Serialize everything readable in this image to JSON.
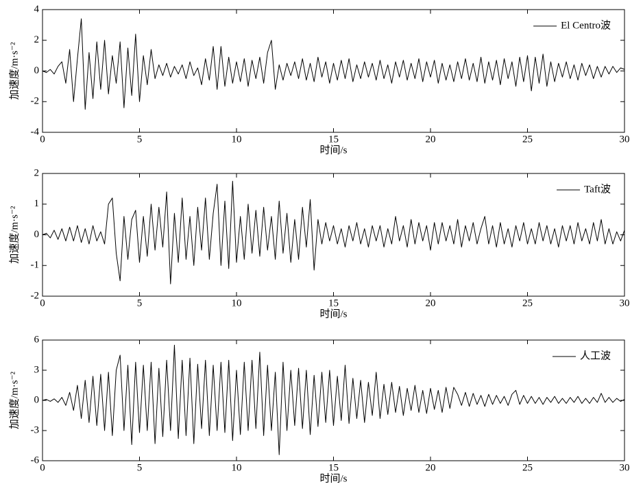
{
  "chart_data": [
    {
      "type": "line",
      "xlabel": "时间/s",
      "ylabel": "加速度/m·s⁻²",
      "xlim": [
        0,
        30
      ],
      "xticks": [
        0,
        5,
        10,
        15,
        20,
        25,
        30
      ],
      "ylim": [
        -4,
        4
      ],
      "yticks": [
        -4,
        -2,
        0,
        2,
        4
      ],
      "legend": "upper right",
      "x": [
        0,
        0.2,
        0.4,
        0.6,
        0.8,
        1,
        1.2,
        1.4,
        1.6,
        1.8,
        2,
        2.2,
        2.4,
        2.6,
        2.8,
        3,
        3.2,
        3.4,
        3.6,
        3.8,
        4,
        4.2,
        4.4,
        4.6,
        4.8,
        5,
        5.2,
        5.4,
        5.6,
        5.8,
        6,
        6.2,
        6.4,
        6.6,
        6.8,
        7,
        7.2,
        7.4,
        7.6,
        7.8,
        8,
        8.2,
        8.4,
        8.6,
        8.8,
        9,
        9.2,
        9.4,
        9.6,
        9.8,
        10,
        10.2,
        10.4,
        10.6,
        10.8,
        11,
        11.2,
        11.4,
        11.6,
        11.8,
        12,
        12.2,
        12.4,
        12.6,
        12.8,
        13,
        13.2,
        13.4,
        13.6,
        13.8,
        14,
        14.2,
        14.4,
        14.6,
        14.8,
        15,
        15.2,
        15.4,
        15.6,
        15.8,
        16,
        16.2,
        16.4,
        16.6,
        16.8,
        17,
        17.2,
        17.4,
        17.6,
        17.8,
        18,
        18.2,
        18.4,
        18.6,
        18.8,
        19,
        19.2,
        19.4,
        19.6,
        19.8,
        20,
        20.2,
        20.4,
        20.6,
        20.8,
        21,
        21.2,
        21.4,
        21.6,
        21.8,
        22,
        22.2,
        22.4,
        22.6,
        22.8,
        23,
        23.2,
        23.4,
        23.6,
        23.8,
        24,
        24.2,
        24.4,
        24.6,
        24.8,
        25,
        25.2,
        25.4,
        25.6,
        25.8,
        26,
        26.2,
        26.4,
        26.6,
        26.8,
        27,
        27.2,
        27.4,
        27.6,
        27.8,
        28,
        28.2,
        28.4,
        28.6,
        28.8,
        29,
        29.2,
        29.4,
        29.6,
        29.8,
        30
      ],
      "series": [
        {
          "name": "El Centro波",
          "color": "#000000",
          "values": [
            0,
            -0.1,
            0.1,
            -0.2,
            0.3,
            0.6,
            -0.8,
            1.4,
            -2.0,
            0.8,
            3.4,
            -2.5,
            1.2,
            -1.8,
            1.9,
            -1.2,
            2.0,
            -1.5,
            1.0,
            -0.8,
            1.9,
            -2.4,
            1.5,
            -1.6,
            2.4,
            -2.0,
            1.0,
            -0.9,
            1.4,
            -0.5,
            0.4,
            -0.3,
            0.5,
            -0.4,
            0.3,
            -0.2,
            0.4,
            -0.5,
            0.6,
            -0.3,
            0.2,
            -0.9,
            0.8,
            -0.6,
            1.6,
            -1.2,
            1.6,
            -1.0,
            0.9,
            -0.8,
            0.6,
            -0.7,
            0.8,
            -1.0,
            0.7,
            -0.5,
            0.9,
            -0.8,
            1.2,
            2.0,
            -1.2,
            0.4,
            -0.6,
            0.5,
            -0.3,
            0.6,
            -0.5,
            0.8,
            -0.6,
            0.5,
            -0.7,
            0.9,
            -0.4,
            0.6,
            -0.8,
            0.5,
            -0.6,
            0.7,
            -0.5,
            0.8,
            -0.7,
            0.4,
            -0.5,
            0.6,
            -0.4,
            0.5,
            -0.6,
            0.7,
            -0.5,
            0.4,
            -0.8,
            0.6,
            -0.4,
            0.7,
            -0.6,
            0.5,
            -0.5,
            0.8,
            -0.7,
            0.6,
            -0.4,
            0.7,
            -0.8,
            0.5,
            -0.6,
            0.4,
            -0.7,
            0.6,
            -0.5,
            0.8,
            -0.6,
            0.5,
            -0.7,
            0.9,
            -0.8,
            0.6,
            -0.6,
            0.7,
            -0.9,
            0.8,
            -0.5,
            0.6,
            -1.0,
            0.9,
            -0.7,
            1.0,
            -1.3,
            0.9,
            -0.8,
            1.1,
            -1.0,
            0.6,
            -0.7,
            0.5,
            -0.4,
            0.6,
            -0.5,
            0.4,
            -0.6,
            0.5,
            -0.3,
            0.4,
            -0.5,
            0.3,
            -0.4,
            0.3,
            -0.2,
            0.3,
            -0.1,
            0.2,
            0.1
          ]
        }
      ]
    },
    {
      "type": "line",
      "xlabel": "时间/s",
      "ylabel": "加速度/m·s⁻²",
      "xlim": [
        0,
        30
      ],
      "xticks": [
        0,
        5,
        10,
        15,
        20,
        25,
        30
      ],
      "ylim": [
        -2,
        2
      ],
      "yticks": [
        -2,
        -1,
        0,
        1,
        2
      ],
      "legend": "upper right",
      "x": [
        0,
        0.2,
        0.4,
        0.6,
        0.8,
        1,
        1.2,
        1.4,
        1.6,
        1.8,
        2,
        2.2,
        2.4,
        2.6,
        2.8,
        3,
        3.2,
        3.4,
        3.6,
        3.8,
        4,
        4.2,
        4.4,
        4.6,
        4.8,
        5,
        5.2,
        5.4,
        5.6,
        5.8,
        6,
        6.2,
        6.4,
        6.6,
        6.8,
        7,
        7.2,
        7.4,
        7.6,
        7.8,
        8,
        8.2,
        8.4,
        8.6,
        8.8,
        9,
        9.2,
        9.4,
        9.6,
        9.8,
        10,
        10.2,
        10.4,
        10.6,
        10.8,
        11,
        11.2,
        11.4,
        11.6,
        11.8,
        12,
        12.2,
        12.4,
        12.6,
        12.8,
        13,
        13.2,
        13.4,
        13.6,
        13.8,
        14,
        14.2,
        14.4,
        14.6,
        14.8,
        15,
        15.2,
        15.4,
        15.6,
        15.8,
        16,
        16.2,
        16.4,
        16.6,
        16.8,
        17,
        17.2,
        17.4,
        17.6,
        17.8,
        18,
        18.2,
        18.4,
        18.6,
        18.8,
        19,
        19.2,
        19.4,
        19.6,
        19.8,
        20,
        20.2,
        20.4,
        20.6,
        20.8,
        21,
        21.2,
        21.4,
        21.6,
        21.8,
        22,
        22.2,
        22.4,
        22.6,
        22.8,
        23,
        23.2,
        23.4,
        23.6,
        23.8,
        24,
        24.2,
        24.4,
        24.6,
        24.8,
        25,
        25.2,
        25.4,
        25.6,
        25.8,
        26,
        26.2,
        26.4,
        26.6,
        26.8,
        27,
        27.2,
        27.4,
        27.6,
        27.8,
        28,
        28.2,
        28.4,
        28.6,
        28.8,
        29,
        29.2,
        29.4,
        29.6,
        29.8,
        30
      ],
      "series": [
        {
          "name": "Taft波",
          "color": "#000000",
          "values": [
            0,
            0.05,
            -0.1,
            0.15,
            -0.15,
            0.2,
            -0.2,
            0.25,
            -0.2,
            0.3,
            -0.25,
            0.2,
            -0.3,
            0.3,
            -0.2,
            0.1,
            -0.3,
            1.0,
            1.2,
            -0.6,
            -1.5,
            0.6,
            -0.8,
            0.5,
            0.8,
            -0.9,
            0.6,
            -0.7,
            1.0,
            -0.5,
            0.9,
            -0.4,
            1.4,
            -1.6,
            0.7,
            -0.9,
            1.2,
            -0.8,
            0.6,
            -1.0,
            0.9,
            -0.5,
            1.2,
            -0.8,
            0.7,
            1.65,
            -1.0,
            1.1,
            -1.1,
            1.75,
            -0.9,
            0.6,
            -0.8,
            1.0,
            -0.6,
            0.8,
            -0.7,
            0.9,
            -0.5,
            0.6,
            -0.8,
            1.1,
            -0.6,
            0.7,
            -0.9,
            0.5,
            -0.8,
            0.9,
            -0.4,
            1.15,
            -1.15,
            0.5,
            -0.3,
            0.4,
            -0.2,
            0.3,
            -0.3,
            0.2,
            -0.4,
            0.3,
            -0.2,
            0.4,
            -0.3,
            0.2,
            -0.4,
            0.3,
            -0.2,
            0.3,
            -0.4,
            0.2,
            -0.3,
            0.6,
            -0.2,
            0.3,
            -0.4,
            0.5,
            -0.3,
            0.4,
            -0.2,
            0.3,
            -0.5,
            0.4,
            -0.3,
            0.4,
            -0.2,
            0.3,
            -0.3,
            0.5,
            -0.4,
            0.3,
            -0.2,
            0.4,
            -0.3,
            0.2,
            0.6,
            -0.3,
            0.3,
            -0.4,
            0.4,
            -0.3,
            0.2,
            -0.4,
            0.3,
            -0.2,
            0.4,
            -0.3,
            0.2,
            -0.3,
            0.4,
            -0.2,
            0.3,
            -0.3,
            0.2,
            -0.4,
            0.3,
            -0.2,
            0.3,
            -0.3,
            0.4,
            -0.2,
            0.2,
            -0.3,
            0.4,
            -0.2,
            0.5,
            -0.3,
            0.2,
            -0.3,
            0.1,
            -0.2,
            0.15
          ]
        }
      ]
    },
    {
      "type": "line",
      "xlabel": "时间/s",
      "ylabel": "加速度/m·s⁻²",
      "xlim": [
        0,
        30
      ],
      "xticks": [
        0,
        5,
        10,
        15,
        20,
        25,
        30
      ],
      "ylim": [
        -6,
        6
      ],
      "yticks": [
        -6,
        -3,
        0,
        3,
        6
      ],
      "legend": "upper right",
      "x": [
        0,
        0.2,
        0.4,
        0.6,
        0.8,
        1,
        1.2,
        1.4,
        1.6,
        1.8,
        2,
        2.2,
        2.4,
        2.6,
        2.8,
        3,
        3.2,
        3.4,
        3.6,
        3.8,
        4,
        4.2,
        4.4,
        4.6,
        4.8,
        5,
        5.2,
        5.4,
        5.6,
        5.8,
        6,
        6.2,
        6.4,
        6.6,
        6.8,
        7,
        7.2,
        7.4,
        7.6,
        7.8,
        8,
        8.2,
        8.4,
        8.6,
        8.8,
        9,
        9.2,
        9.4,
        9.6,
        9.8,
        10,
        10.2,
        10.4,
        10.6,
        10.8,
        11,
        11.2,
        11.4,
        11.6,
        11.8,
        12,
        12.2,
        12.4,
        12.6,
        12.8,
        13,
        13.2,
        13.4,
        13.6,
        13.8,
        14,
        14.2,
        14.4,
        14.6,
        14.8,
        15,
        15.2,
        15.4,
        15.6,
        15.8,
        16,
        16.2,
        16.4,
        16.6,
        16.8,
        17,
        17.2,
        17.4,
        17.6,
        17.8,
        18,
        18.2,
        18.4,
        18.6,
        18.8,
        19,
        19.2,
        19.4,
        19.6,
        19.8,
        20,
        20.2,
        20.4,
        20.6,
        20.8,
        21,
        21.2,
        21.4,
        21.6,
        21.8,
        22,
        22.2,
        22.4,
        22.6,
        22.8,
        23,
        23.2,
        23.4,
        23.6,
        23.8,
        24,
        24.2,
        24.4,
        24.6,
        24.8,
        25,
        25.2,
        25.4,
        25.6,
        25.8,
        26,
        26.2,
        26.4,
        26.6,
        26.8,
        27,
        27.2,
        27.4,
        27.6,
        27.8,
        28,
        28.2,
        28.4,
        28.6,
        28.8,
        29,
        29.2,
        29.4,
        29.6,
        29.8,
        30
      ],
      "series": [
        {
          "name": "人工波",
          "color": "#000000",
          "values": [
            0,
            0.1,
            -0.1,
            0.15,
            -0.2,
            0.3,
            -0.5,
            0.8,
            -1.0,
            1.5,
            -1.8,
            2.0,
            -2.2,
            2.4,
            -2.5,
            2.6,
            -3.0,
            2.8,
            -3.5,
            3.0,
            4.5,
            -3.0,
            3.5,
            -4.4,
            3.8,
            -3.2,
            3.5,
            -3.0,
            3.8,
            -4.3,
            3.2,
            -3.6,
            4.0,
            -3.0,
            5.5,
            -3.8,
            4.0,
            -3.5,
            4.2,
            -4.3,
            3.6,
            -2.8,
            4.0,
            -3.5,
            3.5,
            -3.0,
            3.8,
            -3.2,
            4.0,
            -4.0,
            3.0,
            -3.4,
            3.8,
            -3.0,
            4.0,
            -2.8,
            4.8,
            -3.5,
            3.5,
            -3.0,
            2.8,
            -5.4,
            3.8,
            -3.0,
            3.0,
            -2.5,
            3.2,
            -2.8,
            3.0,
            -3.4,
            2.5,
            -2.6,
            2.8,
            -2.2,
            3.0,
            -2.5,
            2.4,
            -2.0,
            3.5,
            -2.3,
            2.2,
            -1.8,
            2.0,
            -2.2,
            1.8,
            -1.5,
            2.8,
            -1.8,
            1.6,
            -1.4,
            1.8,
            -1.2,
            1.4,
            -1.5,
            1.2,
            -1.0,
            1.5,
            -1.2,
            1.0,
            -1.3,
            1.2,
            -0.9,
            1.0,
            -1.2,
            1.3,
            -0.8,
            1.3,
            0.6,
            -0.5,
            0.8,
            -0.6,
            0.7,
            -0.4,
            0.5,
            -0.6,
            0.6,
            -0.4,
            0.5,
            -0.3,
            0.4,
            -0.5,
            0.6,
            1.0,
            -0.4,
            0.5,
            -0.3,
            0.4,
            -0.3,
            0.3,
            -0.4,
            0.3,
            -0.2,
            0.4,
            -0.3,
            0.2,
            -0.3,
            0.3,
            -0.2,
            0.4,
            -0.3,
            0.2,
            -0.3,
            0.3,
            -0.2,
            0.7,
            -0.2,
            0.3,
            -0.2,
            0.2,
            -0.1,
            0.1
          ]
        }
      ]
    }
  ]
}
